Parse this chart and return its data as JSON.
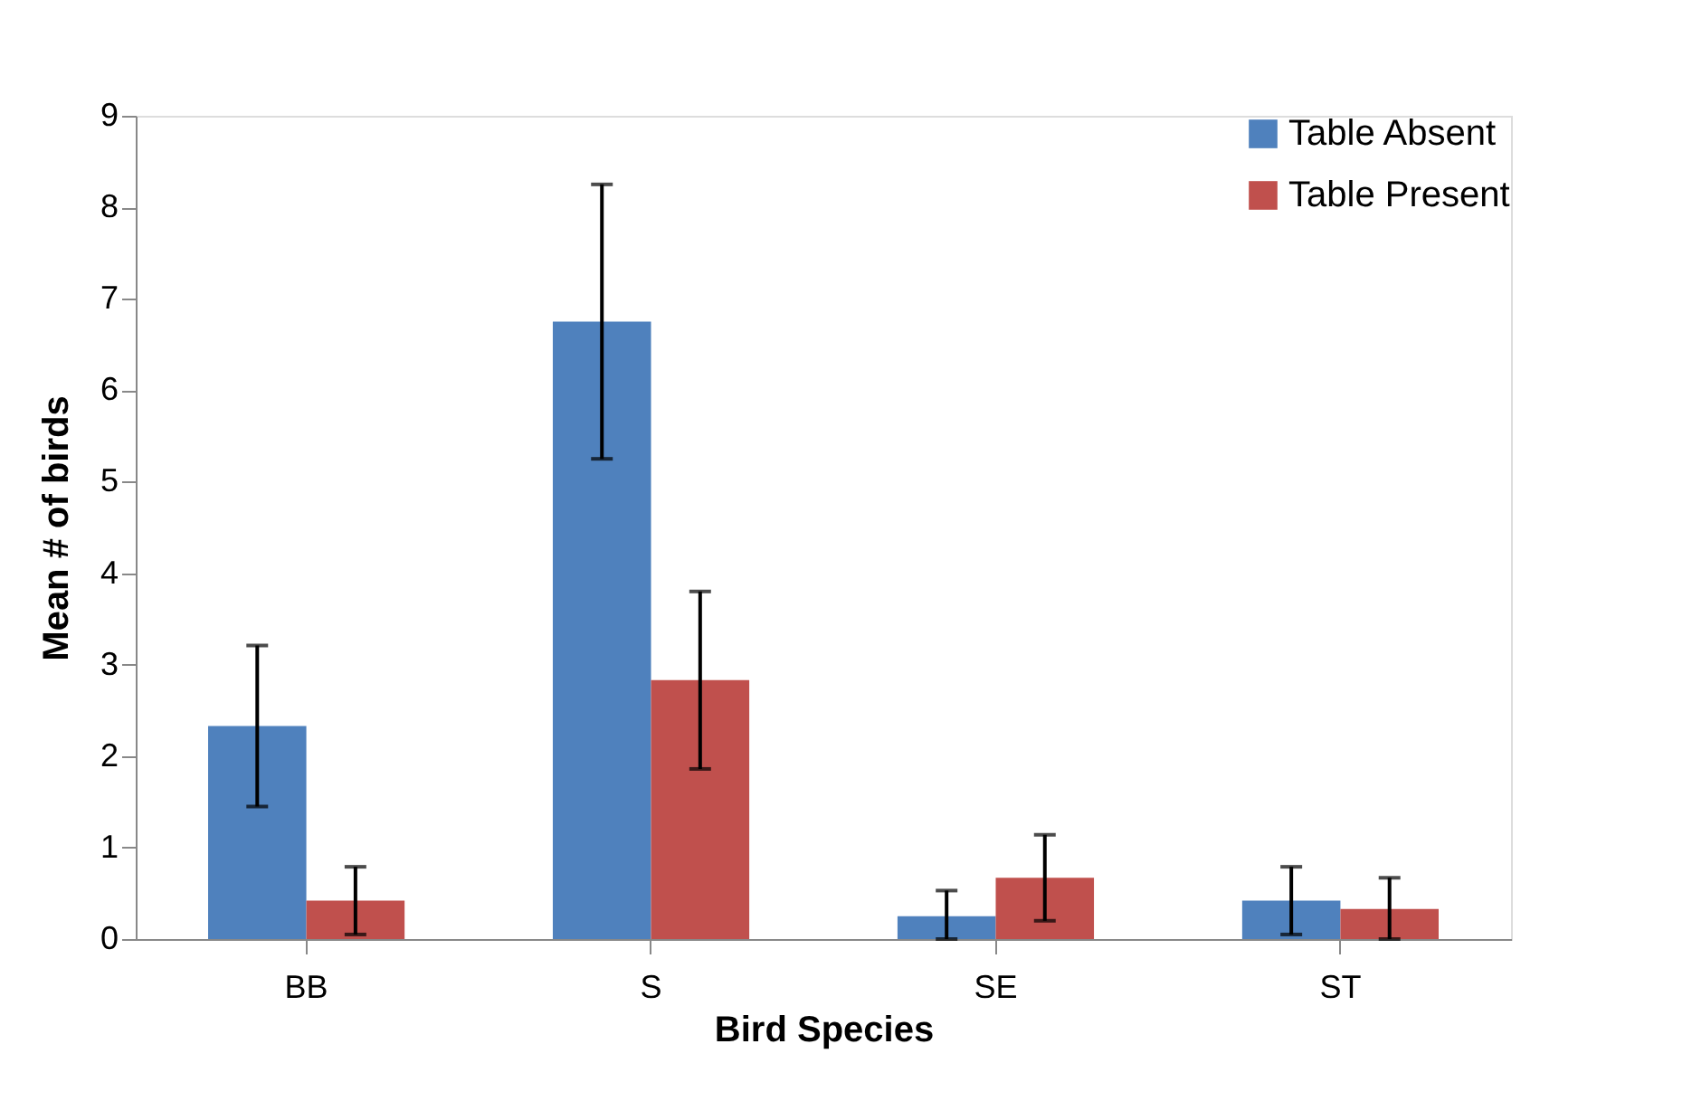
{
  "chart_data": {
    "type": "bar",
    "xlabel": "Bird Species",
    "ylabel": "Mean # of birds",
    "categories": [
      "BB",
      "S",
      "SE",
      "ST"
    ],
    "series": [
      {
        "name": "Table Absent",
        "color": "#4f81bd",
        "values": [
          2.33,
          6.75,
          0.25,
          0.42
        ],
        "errors": [
          0.88,
          1.5,
          [
            0,
            0.53
          ],
          0.37
        ]
      },
      {
        "name": "Table Present",
        "color": "#c0504d",
        "values": [
          0.42,
          2.83,
          0.67,
          0.33
        ],
        "errors": [
          0.37,
          0.97,
          0.47,
          [
            0,
            0.67
          ]
        ]
      }
    ],
    "ylim": [
      0,
      9
    ],
    "yticks": [
      0,
      1,
      2,
      3,
      4,
      5,
      6,
      7,
      8,
      9
    ],
    "grid": false,
    "legend": "top right"
  }
}
